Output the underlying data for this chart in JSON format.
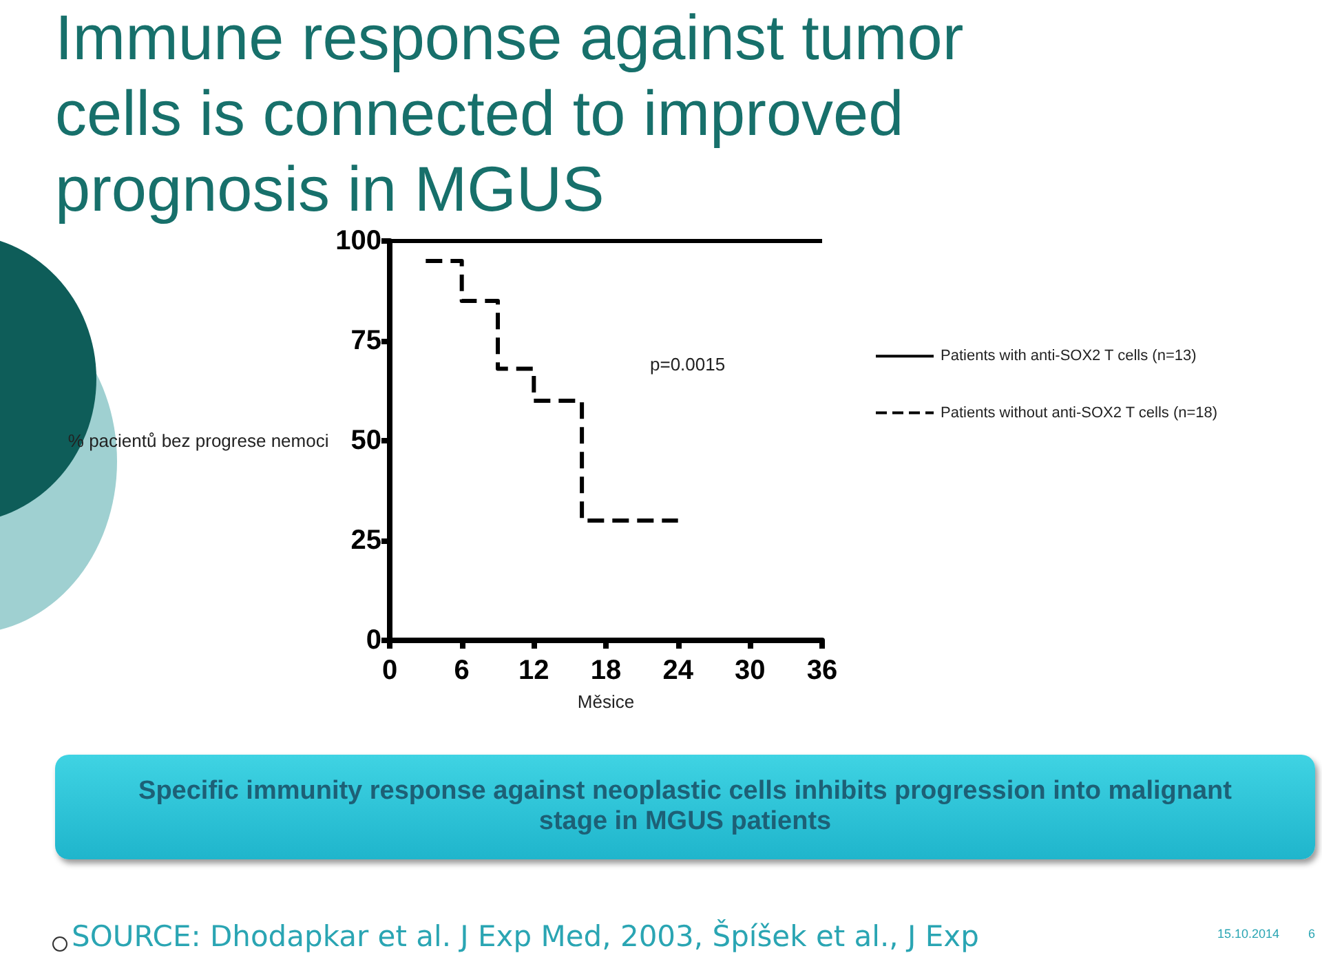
{
  "chart_data": {
    "type": "step",
    "title": "Immune response  against tumor cells is connected  to improved prognosis in MGUS",
    "xlabel": "Měsice",
    "ylabel": "% pacientů bez progrese nemoci",
    "xlim": [
      0,
      36
    ],
    "xticks": [
      0,
      6,
      12,
      18,
      24,
      30,
      36
    ],
    "ylim": [
      0,
      100
    ],
    "yticks": [
      0,
      25,
      50,
      75,
      100
    ],
    "grid": false,
    "legend": "right",
    "marker": "none",
    "series": [
      {
        "name": "Patients with anti-SOX2 T cells (n=13)",
        "color": "#000000",
        "line_style": "solid",
        "x": [
          0,
          36
        ],
        "values": [
          100,
          100
        ]
      },
      {
        "name": "Patients without anti-SOX2 T cells (n=18)",
        "color": "#000000",
        "line_style": "dashed",
        "x": [
          3,
          6,
          9,
          12,
          16,
          24
        ],
        "values": [
          95,
          85,
          68,
          60,
          30,
          30
        ]
      }
    ],
    "annotations": [
      "p=0.0015",
      "Specific immunity response against neoplastic cells inhibits progression into malignant stage in MGUS patients",
      "SOURCE: Dhodapkar et al. J Exp Med, 2003, Špíšek et al., J Exp",
      "15.10.2014",
      "6"
    ]
  }
}
